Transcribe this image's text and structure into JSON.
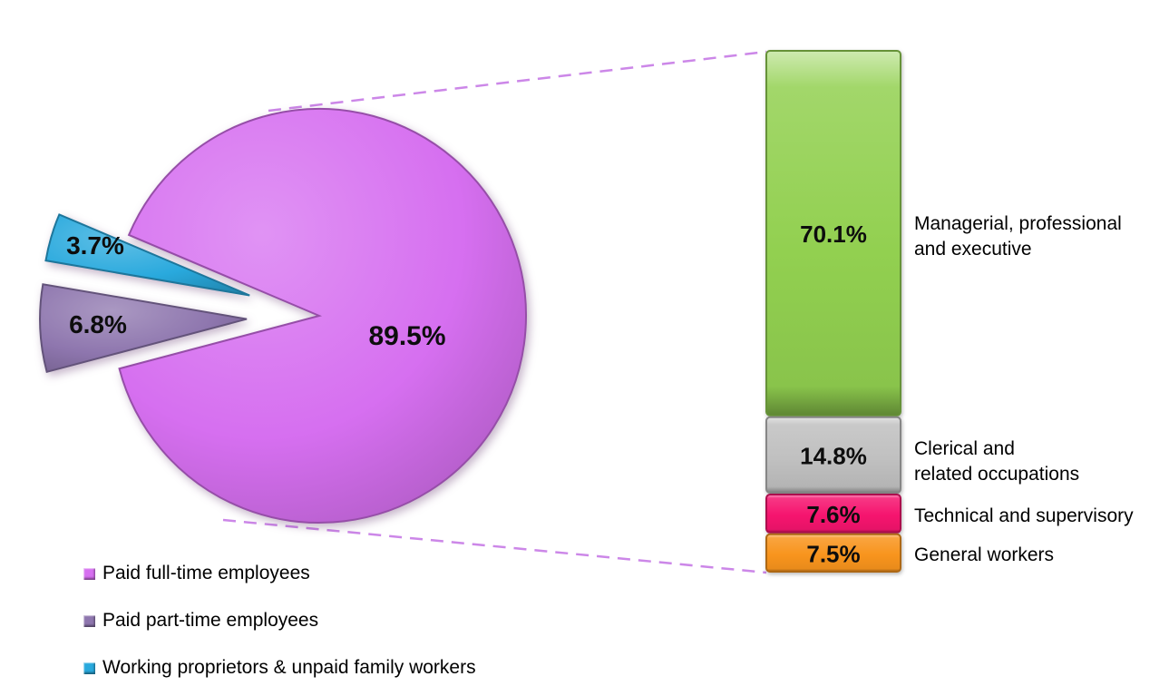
{
  "chart_data": {
    "type": "pie-of-bar",
    "title": "",
    "grid": false,
    "legend_position": "bottom-left",
    "background_color": "#FFFFFF",
    "connector_color": "#CC87E8",
    "label_color": "#000000",
    "pie": {
      "slices": [
        {
          "label": "Paid full-time employees",
          "value": 89.5,
          "display": "89.5%",
          "color": "#D66FF0"
        },
        {
          "label": "Paid part-time employees",
          "value": 6.8,
          "display": "6.8%",
          "color": "#8E76AE"
        },
        {
          "label": "Working proprietors & unpaid family workers",
          "value": 3.7,
          "display": "3.7%",
          "color": "#29A9DD"
        }
      ]
    },
    "bar": {
      "segments": [
        {
          "label": "Managerial, professional and executive",
          "label_lines": [
            "Managerial, professional",
            "and executive"
          ],
          "value": 70.1,
          "display": "70.1%",
          "color": "#92D050"
        },
        {
          "label": "Clerical and related occupations",
          "label_lines": [
            "Clerical and",
            "related occupations"
          ],
          "value": 14.8,
          "display": "14.8%",
          "color": "#C0C0C0"
        },
        {
          "label": "Technical and supervisory",
          "label_lines": [
            "Technical and supervisory"
          ],
          "value": 7.6,
          "display": "7.6%",
          "color": "#F5146E"
        },
        {
          "label": "General workers",
          "label_lines": [
            "General workers"
          ],
          "value": 7.5,
          "display": "7.5%",
          "color": "#F8941D"
        }
      ]
    }
  }
}
